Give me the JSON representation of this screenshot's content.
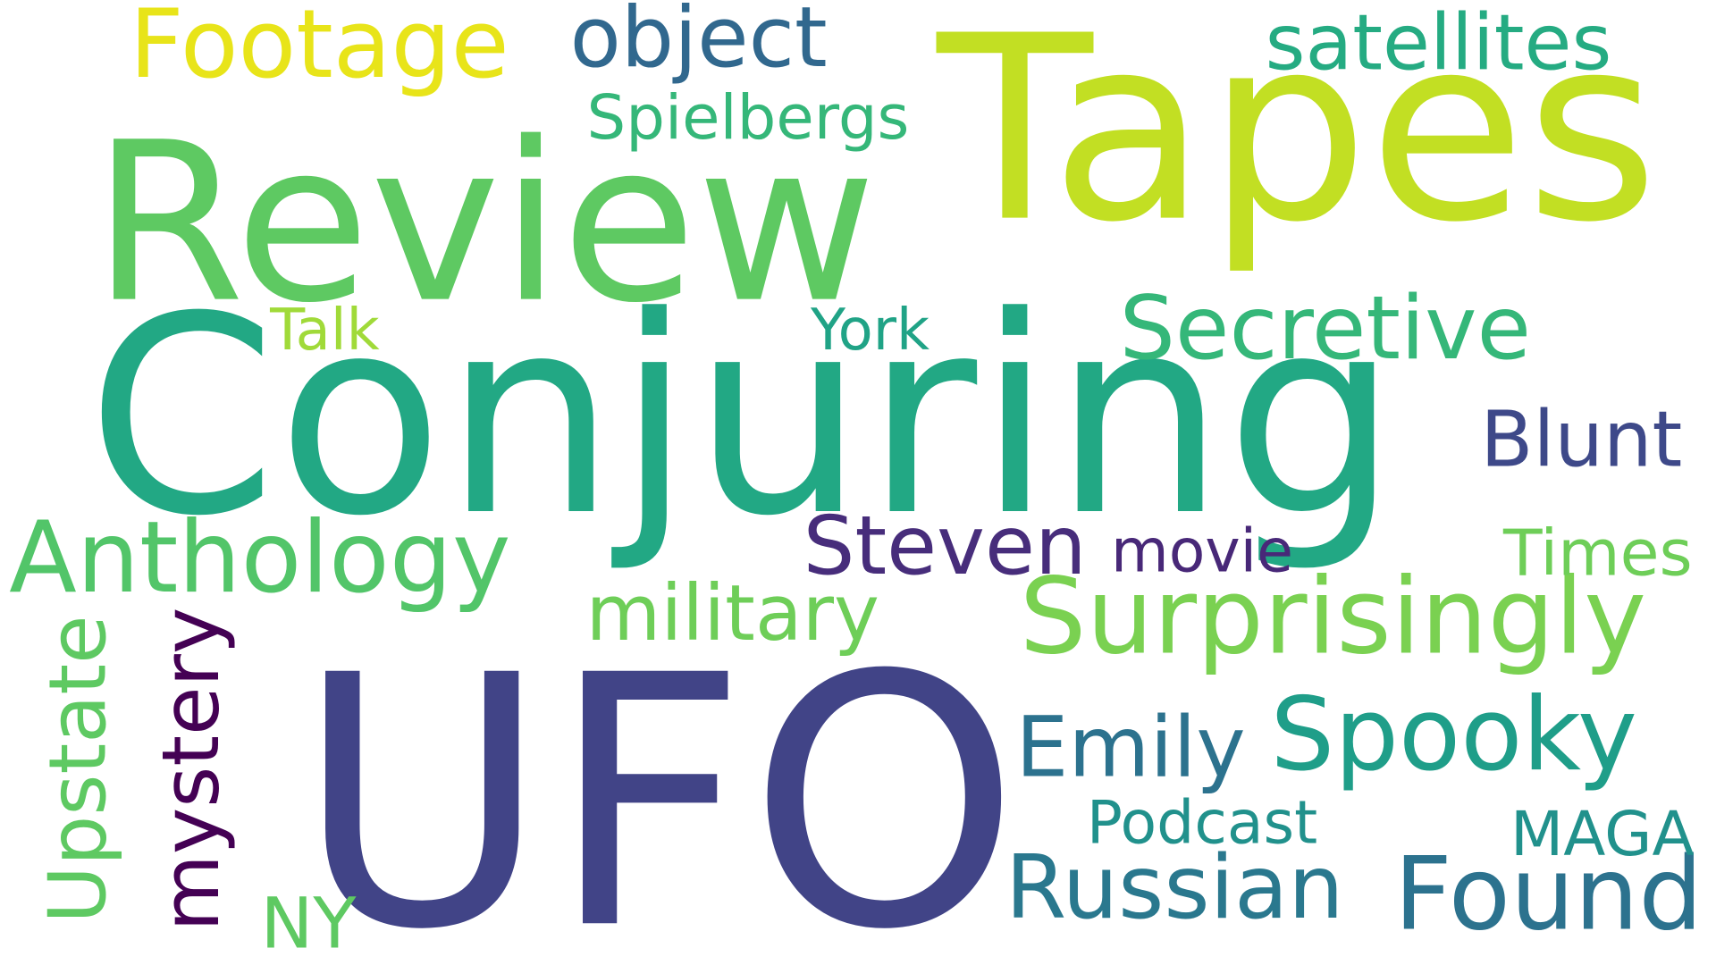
{
  "words": [
    {
      "text": "UFO",
      "color": "#414487"
    },
    {
      "text": "Conjuring",
      "color": "#22a884"
    },
    {
      "text": "Tapes",
      "color": "#c2df23"
    },
    {
      "text": "Review",
      "color": "#5ec962"
    },
    {
      "text": "Surprisingly",
      "color": "#7ad151"
    },
    {
      "text": "Footage",
      "color": "#e8e419"
    },
    {
      "text": "Found",
      "color": "#2c728e"
    },
    {
      "text": "Anthology",
      "color": "#52c569"
    },
    {
      "text": "Spooky",
      "color": "#1f9e89"
    },
    {
      "text": "Russian",
      "color": "#2a788e"
    },
    {
      "text": "Secretive",
      "color": "#35b779"
    },
    {
      "text": "satellites",
      "color": "#25ab82"
    },
    {
      "text": "object",
      "color": "#31688e"
    },
    {
      "text": "Emily",
      "color": "#2c728e"
    },
    {
      "text": "Steven",
      "color": "#472d7b"
    },
    {
      "text": "military",
      "color": "#6ece58"
    },
    {
      "text": "Upstate",
      "color": "#5ec962"
    },
    {
      "text": "mystery",
      "color": "#440154"
    },
    {
      "text": "Blunt",
      "color": "#3e4989"
    },
    {
      "text": "Spielbergs",
      "color": "#35b779"
    },
    {
      "text": "Podcast",
      "color": "#21918c"
    },
    {
      "text": "MAGA",
      "color": "#21918c"
    },
    {
      "text": "NY",
      "color": "#5ec962"
    },
    {
      "text": "Times",
      "color": "#6ece58"
    },
    {
      "text": "movie",
      "color": "#482878"
    },
    {
      "text": "York",
      "color": "#20a386"
    },
    {
      "text": "Talk",
      "color": "#a0da39"
    }
  ]
}
